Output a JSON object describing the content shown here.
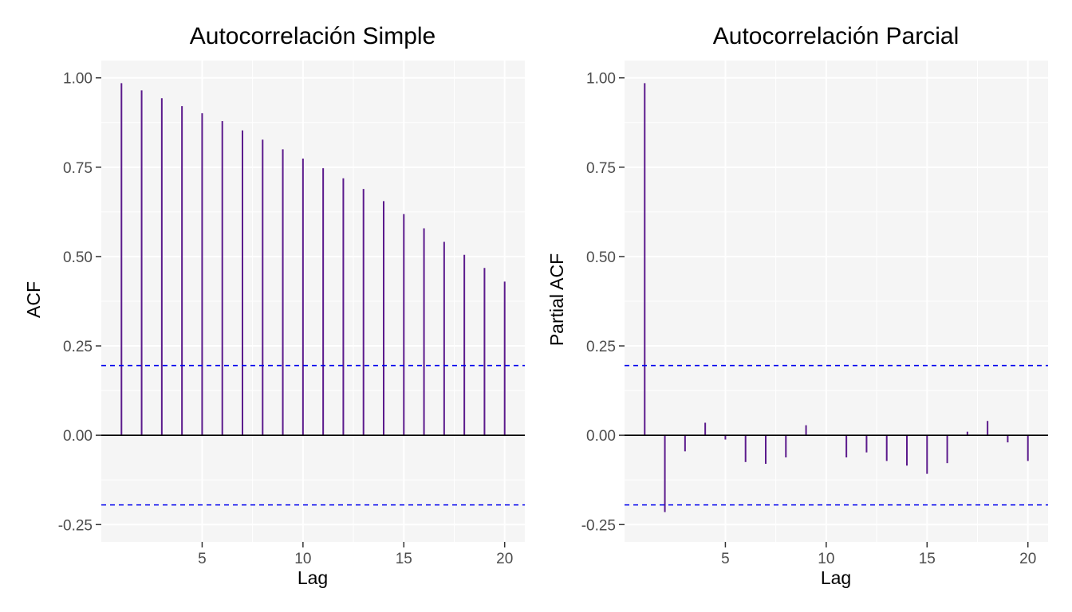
{
  "colors": {
    "panel_bg": "#f5f5f5",
    "grid": "#ffffff",
    "bar": "#5b1a8c",
    "baseline": "#000000",
    "ci": "#0000ee",
    "tick_text": "#4d4d4d"
  },
  "chart_data": [
    {
      "type": "bar",
      "title": "Autocorrelación Simple",
      "xlabel": "Lag",
      "ylabel": "ACF",
      "xlim": [
        0,
        21
      ],
      "ylim": [
        -0.25,
        1.0
      ],
      "x_ticks": [
        5,
        10,
        15,
        20
      ],
      "x_tick_labels": [
        "5",
        "10",
        "15",
        "20"
      ],
      "y_ticks": [
        -0.25,
        0,
        0.25,
        0.5,
        0.75,
        1.0
      ],
      "y_tick_labels": [
        "-0.25",
        "0.00",
        "0.25",
        "0.50",
        "0.75",
        "1.00"
      ],
      "grid": true,
      "confidence_bounds": [
        0.195,
        -0.195
      ],
      "lags": [
        1,
        2,
        3,
        4,
        5,
        6,
        7,
        8,
        9,
        10,
        11,
        12,
        13,
        14,
        15,
        16,
        17,
        18,
        19,
        20
      ],
      "values": [
        0.985,
        0.965,
        0.943,
        0.921,
        0.901,
        0.879,
        0.853,
        0.827,
        0.8,
        0.774,
        0.747,
        0.719,
        0.689,
        0.655,
        0.619,
        0.579,
        0.541,
        0.505,
        0.468,
        0.43
      ]
    },
    {
      "type": "bar",
      "title": "Autocorrelación Parcial",
      "xlabel": "Lag",
      "ylabel": "Partial ACF",
      "xlim": [
        0,
        21
      ],
      "ylim": [
        -0.25,
        1.0
      ],
      "x_ticks": [
        5,
        10,
        15,
        20
      ],
      "x_tick_labels": [
        "5",
        "10",
        "15",
        "20"
      ],
      "y_ticks": [
        -0.25,
        0,
        0.25,
        0.5,
        0.75,
        1.0
      ],
      "y_tick_labels": [
        "-0.25",
        "0.00",
        "0.25",
        "0.50",
        "0.75",
        "1.00"
      ],
      "grid": true,
      "confidence_bounds": [
        0.195,
        -0.195
      ],
      "lags": [
        1,
        2,
        3,
        4,
        5,
        6,
        7,
        8,
        9,
        10,
        11,
        12,
        13,
        14,
        15,
        16,
        17,
        18,
        19,
        20
      ],
      "values": [
        0.985,
        -0.215,
        -0.045,
        0.035,
        -0.012,
        -0.075,
        -0.08,
        -0.062,
        0.028,
        -0.001,
        -0.062,
        -0.048,
        -0.072,
        -0.085,
        -0.108,
        -0.078,
        0.01,
        0.04,
        -0.02,
        -0.072
      ]
    }
  ]
}
